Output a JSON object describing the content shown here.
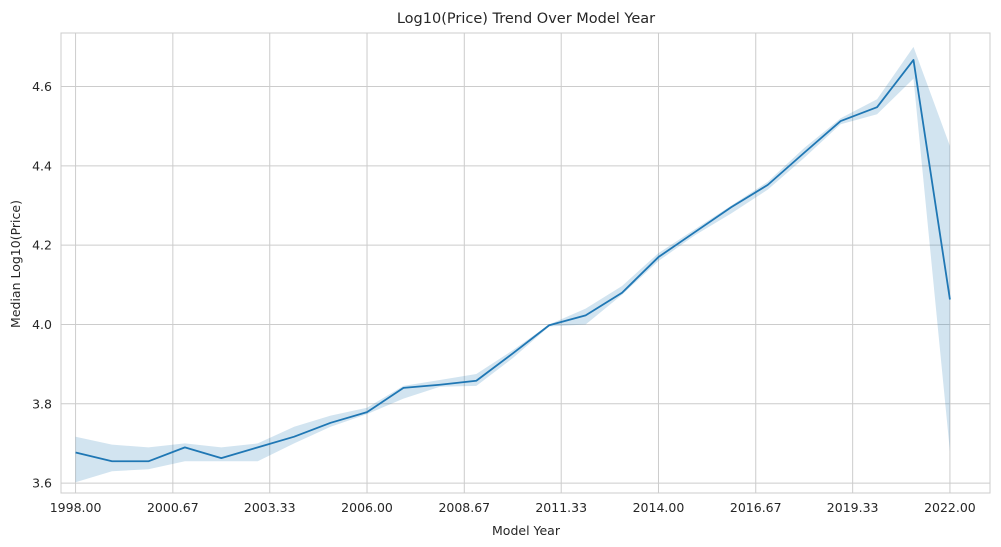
{
  "chart_data": {
    "type": "line",
    "title": "Log10(Price) Trend Over Model Year",
    "xlabel": "Model Year",
    "ylabel": "Median Log10(Price)",
    "xlim": [
      1997.6,
      2023.1
    ],
    "ylim": [
      3.575,
      4.735
    ],
    "x_ticks": [
      1998.0,
      2000.67,
      2003.33,
      2006.0,
      2008.67,
      2011.33,
      2014.0,
      2016.67,
      2019.33,
      2022.0
    ],
    "x_tick_labels": [
      "1998.00",
      "2000.67",
      "2003.33",
      "2006.00",
      "2008.67",
      "2011.33",
      "2014.00",
      "2016.67",
      "2019.33",
      "2022.00"
    ],
    "y_ticks": [
      3.6,
      3.8,
      4.0,
      4.2,
      4.4,
      4.6
    ],
    "y_tick_labels": [
      "3.6",
      "3.8",
      "4.0",
      "4.2",
      "4.4",
      "4.6"
    ],
    "grid": true,
    "colors": {
      "line": "#1f77b4",
      "band": "#1f77b4",
      "grid": "#cccccc"
    },
    "series": [
      {
        "x": [
          1998,
          1999,
          2000,
          2001,
          2002,
          2003,
          2004,
          2005,
          2006,
          2007,
          2008,
          2009,
          2010,
          2011,
          2012,
          2013,
          2014,
          2015,
          2016,
          2017,
          2018,
          2019,
          2020,
          2021,
          2022
        ],
        "values": [
          3.677,
          3.655,
          3.655,
          3.69,
          3.663,
          3.69,
          3.717,
          3.752,
          3.779,
          3.84,
          3.848,
          3.858,
          3.927,
          3.998,
          4.023,
          4.08,
          4.17,
          4.233,
          4.296,
          4.352,
          4.433,
          4.513,
          4.548,
          4.667,
          4.063
        ],
        "ci_lower": [
          3.602,
          3.63,
          3.635,
          3.655,
          3.655,
          3.655,
          3.7,
          3.742,
          3.774,
          3.813,
          3.843,
          3.845,
          3.915,
          3.995,
          4.0,
          4.075,
          4.16,
          4.225,
          4.28,
          4.34,
          4.42,
          4.505,
          4.53,
          4.62,
          3.68
        ],
        "ci_upper": [
          3.717,
          3.697,
          3.69,
          3.7,
          3.69,
          3.7,
          3.742,
          3.77,
          3.79,
          3.845,
          3.86,
          3.875,
          3.935,
          4.0,
          4.04,
          4.097,
          4.18,
          4.24,
          4.3,
          4.36,
          4.445,
          4.52,
          4.568,
          4.7,
          4.45
        ]
      }
    ]
  }
}
